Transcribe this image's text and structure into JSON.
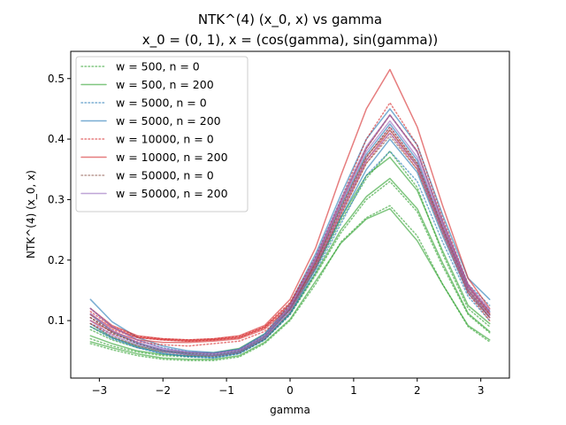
{
  "chart_data": {
    "type": "line",
    "title_line1": "NTK^(4) (x_0, x) vs gamma",
    "title_line2": "x_0 = (0, 1), x = (cos(gamma), sin(gamma))",
    "xlabel": "gamma",
    "ylabel": "NTK^(4) (x_0, x)",
    "xlim": [
      -3.45,
      3.45
    ],
    "ylim": [
      0.005,
      0.545
    ],
    "xticks": [
      -3,
      -2,
      -1,
      0,
      1,
      2,
      3
    ],
    "xtick_labels": [
      "−3",
      "−2",
      "−1",
      "0",
      "1",
      "2",
      "3"
    ],
    "yticks": [
      0.1,
      0.2,
      0.3,
      0.4,
      0.5
    ],
    "ytick_labels": [
      "0.1",
      "0.2",
      "0.3",
      "0.4",
      "0.5"
    ],
    "grid": false,
    "legend_position": "top-left",
    "x": [
      -3.14,
      -2.8,
      -2.4,
      -2.0,
      -1.6,
      -1.2,
      -0.8,
      -0.4,
      0.0,
      0.4,
      0.8,
      1.2,
      1.57,
      2.0,
      2.4,
      2.8,
      3.14
    ],
    "series": [
      {
        "name": "w = 500, n = 0",
        "color": "#2ca02c",
        "style": "dotted",
        "runs": [
          [
            0.062,
            0.052,
            0.042,
            0.036,
            0.034,
            0.034,
            0.04,
            0.062,
            0.1,
            0.16,
            0.23,
            0.27,
            0.29,
            0.24,
            0.16,
            0.09,
            0.065
          ],
          [
            0.07,
            0.058,
            0.048,
            0.042,
            0.04,
            0.04,
            0.046,
            0.068,
            0.11,
            0.175,
            0.245,
            0.3,
            0.33,
            0.28,
            0.19,
            0.11,
            0.08
          ],
          [
            0.085,
            0.068,
            0.055,
            0.048,
            0.046,
            0.046,
            0.052,
            0.075,
            0.118,
            0.185,
            0.265,
            0.335,
            0.38,
            0.32,
            0.21,
            0.12,
            0.09
          ]
        ]
      },
      {
        "name": "w = 500, n = 200",
        "color": "#2ca02c",
        "style": "solid",
        "runs": [
          [
            0.065,
            0.055,
            0.045,
            0.038,
            0.036,
            0.036,
            0.042,
            0.064,
            0.102,
            0.165,
            0.228,
            0.268,
            0.285,
            0.232,
            0.16,
            0.092,
            0.068
          ],
          [
            0.075,
            0.062,
            0.05,
            0.044,
            0.042,
            0.042,
            0.048,
            0.07,
            0.112,
            0.178,
            0.25,
            0.305,
            0.335,
            0.285,
            0.195,
            0.112,
            0.082
          ],
          [
            0.09,
            0.072,
            0.058,
            0.05,
            0.047,
            0.047,
            0.054,
            0.078,
            0.12,
            0.19,
            0.27,
            0.34,
            0.37,
            0.315,
            0.215,
            0.125,
            0.095
          ]
        ]
      },
      {
        "name": "w = 5000, n = 0",
        "color": "#1f77b4",
        "style": "dotted",
        "runs": [
          [
            0.09,
            0.07,
            0.055,
            0.045,
            0.04,
            0.038,
            0.045,
            0.068,
            0.11,
            0.18,
            0.26,
            0.34,
            0.38,
            0.33,
            0.23,
            0.14,
            0.1
          ],
          [
            0.105,
            0.08,
            0.062,
            0.05,
            0.044,
            0.042,
            0.048,
            0.072,
            0.118,
            0.195,
            0.285,
            0.37,
            0.42,
            0.36,
            0.25,
            0.15,
            0.11
          ],
          [
            0.12,
            0.09,
            0.068,
            0.055,
            0.048,
            0.046,
            0.052,
            0.076,
            0.125,
            0.205,
            0.3,
            0.385,
            0.44,
            0.38,
            0.265,
            0.16,
            0.125
          ]
        ]
      },
      {
        "name": "w = 5000, n = 200",
        "color": "#1f77b4",
        "style": "solid",
        "runs": [
          [
            0.095,
            0.072,
            0.056,
            0.046,
            0.041,
            0.039,
            0.046,
            0.069,
            0.112,
            0.185,
            0.27,
            0.35,
            0.4,
            0.345,
            0.24,
            0.145,
            0.105
          ],
          [
            0.11,
            0.082,
            0.063,
            0.051,
            0.045,
            0.043,
            0.049,
            0.073,
            0.12,
            0.198,
            0.29,
            0.375,
            0.425,
            0.365,
            0.255,
            0.155,
            0.115
          ],
          [
            0.135,
            0.098,
            0.072,
            0.058,
            0.05,
            0.047,
            0.053,
            0.078,
            0.128,
            0.21,
            0.308,
            0.4,
            0.45,
            0.39,
            0.275,
            0.17,
            0.135
          ]
        ]
      },
      {
        "name": "w = 10000, n = 0",
        "color": "#d62728",
        "style": "dotted",
        "runs": [
          [
            0.105,
            0.085,
            0.072,
            0.068,
            0.066,
            0.068,
            0.072,
            0.088,
            0.125,
            0.195,
            0.285,
            0.37,
            0.42,
            0.36,
            0.255,
            0.155,
            0.11
          ],
          [
            0.095,
            0.078,
            0.065,
            0.06,
            0.058,
            0.062,
            0.066,
            0.082,
            0.118,
            0.188,
            0.275,
            0.36,
            0.41,
            0.35,
            0.245,
            0.145,
            0.1
          ],
          [
            0.115,
            0.09,
            0.074,
            0.07,
            0.068,
            0.07,
            0.074,
            0.09,
            0.13,
            0.205,
            0.3,
            0.4,
            0.46,
            0.39,
            0.27,
            0.16,
            0.115
          ]
        ]
      },
      {
        "name": "w = 10000, n = 200",
        "color": "#d62728",
        "style": "solid",
        "runs": [
          [
            0.1,
            0.082,
            0.068,
            0.064,
            0.064,
            0.066,
            0.07,
            0.086,
            0.122,
            0.192,
            0.28,
            0.365,
            0.415,
            0.355,
            0.25,
            0.15,
            0.105
          ],
          [
            0.11,
            0.088,
            0.072,
            0.068,
            0.066,
            0.068,
            0.072,
            0.089,
            0.128,
            0.2,
            0.295,
            0.385,
            0.44,
            0.38,
            0.262,
            0.158,
            0.112
          ],
          [
            0.12,
            0.092,
            0.075,
            0.07,
            0.068,
            0.07,
            0.075,
            0.092,
            0.135,
            0.22,
            0.34,
            0.45,
            0.515,
            0.42,
            0.29,
            0.17,
            0.12
          ]
        ]
      },
      {
        "name": "w = 50000, n = 0",
        "color": "#8c564b",
        "style": "dotted",
        "runs": [
          [
            0.095,
            0.074,
            0.058,
            0.048,
            0.043,
            0.041,
            0.047,
            0.07,
            0.114,
            0.188,
            0.275,
            0.36,
            0.405,
            0.35,
            0.245,
            0.148,
            0.105
          ],
          [
            0.105,
            0.08,
            0.062,
            0.051,
            0.046,
            0.044,
            0.05,
            0.073,
            0.119,
            0.196,
            0.288,
            0.372,
            0.415,
            0.358,
            0.252,
            0.152,
            0.11
          ]
        ]
      },
      {
        "name": "w = 50000, n = 200",
        "color": "#9467bd",
        "style": "solid",
        "runs": [
          [
            0.1,
            0.076,
            0.06,
            0.049,
            0.044,
            0.042,
            0.048,
            0.071,
            0.116,
            0.19,
            0.28,
            0.365,
            0.41,
            0.355,
            0.248,
            0.15,
            0.108
          ],
          [
            0.112,
            0.084,
            0.064,
            0.052,
            0.047,
            0.045,
            0.051,
            0.074,
            0.121,
            0.2,
            0.294,
            0.38,
            0.43,
            0.37,
            0.258,
            0.156,
            0.114
          ],
          [
            0.12,
            0.09,
            0.068,
            0.054,
            0.048,
            0.046,
            0.052,
            0.076,
            0.124,
            0.204,
            0.3,
            0.388,
            0.44,
            0.378,
            0.264,
            0.16,
            0.118
          ]
        ]
      }
    ]
  }
}
